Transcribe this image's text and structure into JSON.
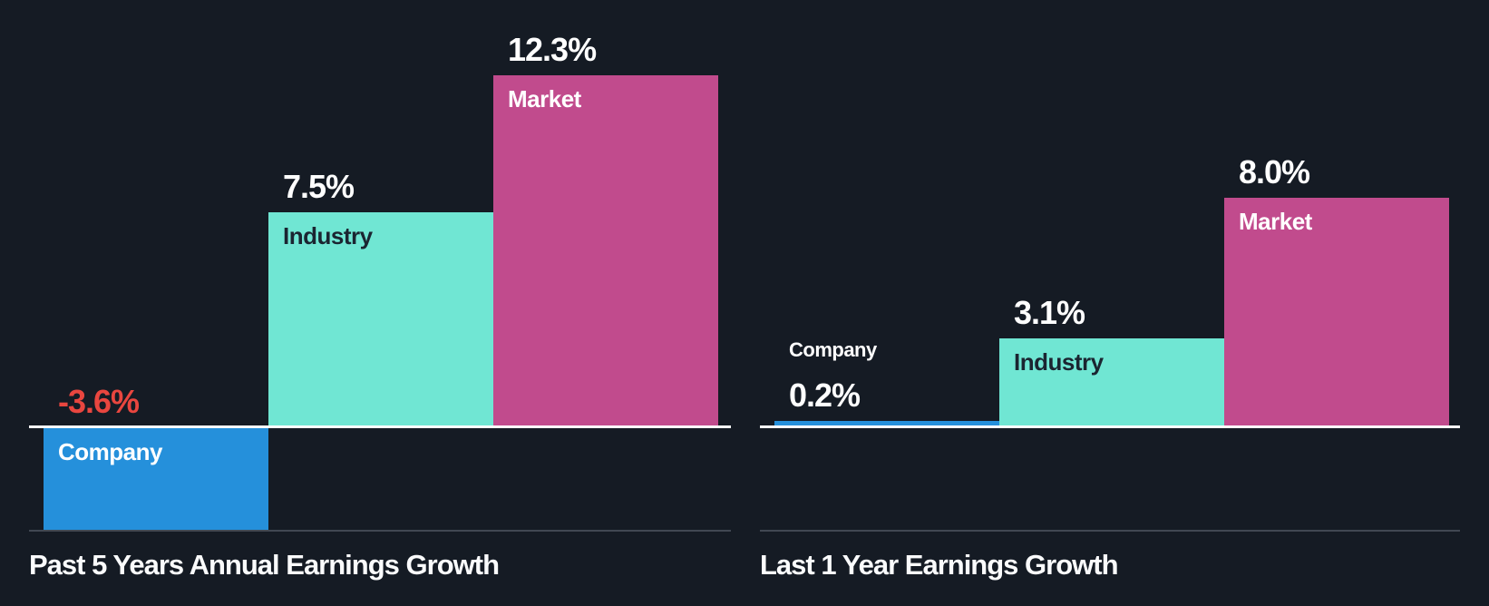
{
  "page": {
    "background_color": "#151B24",
    "zero_axis_color": "#FFFFFF",
    "baseline_color": "#414852",
    "title_color": "#FAFBFC"
  },
  "chart_data": [
    {
      "type": "bar",
      "title": "Past 5 Years Annual Earnings Growth",
      "categories": [
        "Company",
        "Industry",
        "Market"
      ],
      "values": [
        -3.6,
        7.5,
        12.3
      ],
      "value_labels": [
        "-3.6%",
        "7.5%",
        "12.3%"
      ],
      "unit": "%",
      "ylim": [
        -3.6,
        12.3
      ],
      "grid": false,
      "legend": false,
      "bar_colors": [
        "#2590DB",
        "#70E6D3",
        "#C14B8D"
      ],
      "value_label_colors": [
        "#E9463F",
        "#FFFFFF",
        "#FFFFFF"
      ],
      "category_label_colors": [
        "#FFFFFF",
        "#1B2531",
        "#FFFFFF"
      ],
      "category_label_placement": [
        "inside",
        "inside",
        "inside"
      ]
    },
    {
      "type": "bar",
      "title": "Last 1 Year Earnings Growth",
      "categories": [
        "Company",
        "Industry",
        "Market"
      ],
      "values": [
        0.2,
        3.1,
        8.0
      ],
      "value_labels": [
        "0.2%",
        "3.1%",
        "8.0%"
      ],
      "unit": "%",
      "ylim": [
        -3.6,
        12.3
      ],
      "grid": false,
      "legend": false,
      "bar_colors": [
        "#2590DB",
        "#70E6D3",
        "#C14B8D"
      ],
      "value_label_colors": [
        "#FFFFFF",
        "#FFFFFF",
        "#FFFFFF"
      ],
      "category_label_colors": [
        "#FFFFFF",
        "#1B2531",
        "#FFFFFF"
      ],
      "category_label_placement": [
        "above",
        "inside",
        "inside"
      ]
    }
  ]
}
